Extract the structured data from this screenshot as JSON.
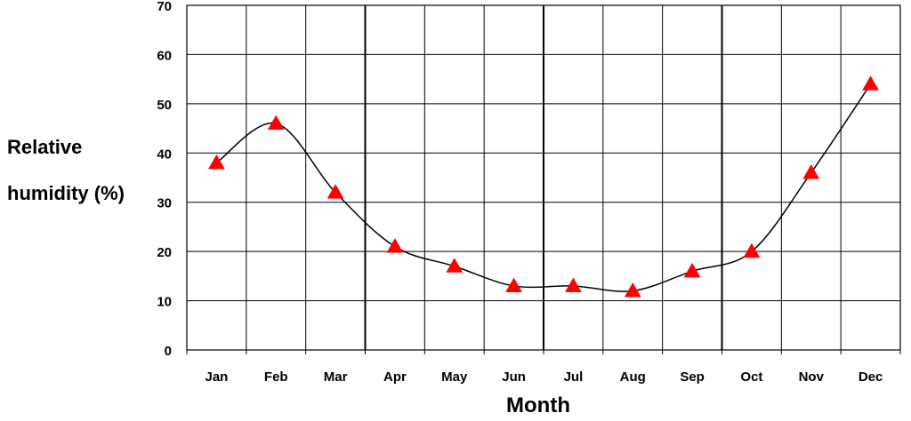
{
  "chart_data": {
    "type": "line",
    "categories": [
      "Jan",
      "Feb",
      "Mar",
      "Apr",
      "May",
      "Jun",
      "Jul",
      "Aug",
      "Sep",
      "Oct",
      "Nov",
      "Dec"
    ],
    "series": [
      {
        "values": [
          38,
          46,
          32,
          21,
          17,
          13,
          13,
          12,
          16,
          20,
          36,
          54
        ]
      }
    ],
    "ylabel_line1": "Relative",
    "ylabel_line2": "humidity (%)",
    "xlabel": "Month",
    "ylim": [
      0,
      70
    ],
    "yticks": [
      0,
      10,
      20,
      30,
      40,
      50,
      60,
      70
    ],
    "grid": true,
    "marker": "triangle",
    "marker_color": "#ff0000",
    "line_color": "#000000",
    "smooth": true
  }
}
